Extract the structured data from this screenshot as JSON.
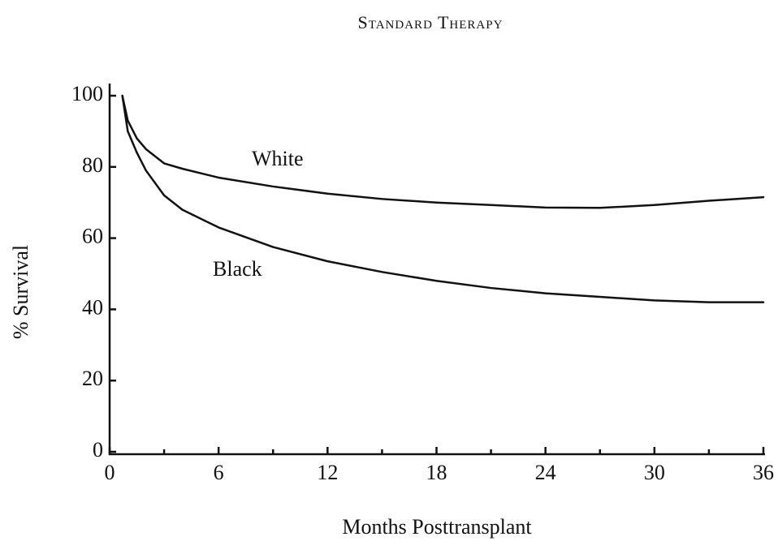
{
  "chart_data": {
    "type": "line",
    "title": "Standard Therapy",
    "x_label": "Months Posttransplant",
    "y_label": "% Survival",
    "xlim": [
      0,
      36
    ],
    "xticks": [
      0,
      6,
      12,
      18,
      24,
      30,
      36
    ],
    "xminorticks": [
      3,
      9,
      15,
      21,
      27,
      33
    ],
    "ylim": [
      0,
      100
    ],
    "yticks": [
      0,
      20,
      40,
      60,
      80,
      100
    ],
    "series": [
      {
        "name": "White",
        "color": "#111111",
        "x": [
          0.7,
          1,
          1.5,
          2,
          3,
          4,
          6,
          9,
          12,
          15,
          18,
          21,
          24,
          27,
          30,
          33,
          36
        ],
        "values": [
          100,
          93,
          88,
          85,
          81,
          79.5,
          77,
          74.5,
          72.5,
          71,
          70,
          69.3,
          68.6,
          68.5,
          69.3,
          70.5,
          71.5
        ]
      },
      {
        "name": "Black",
        "color": "#111111",
        "x": [
          0.7,
          1,
          1.5,
          2,
          3,
          4,
          6,
          9,
          12,
          15,
          18,
          21,
          24,
          27,
          30,
          33,
          36
        ],
        "values": [
          100,
          90,
          84,
          79,
          72,
          68,
          63,
          57.5,
          53.5,
          50.5,
          48,
          46,
          44.5,
          43.5,
          42.5,
          42,
          42
        ]
      }
    ]
  }
}
